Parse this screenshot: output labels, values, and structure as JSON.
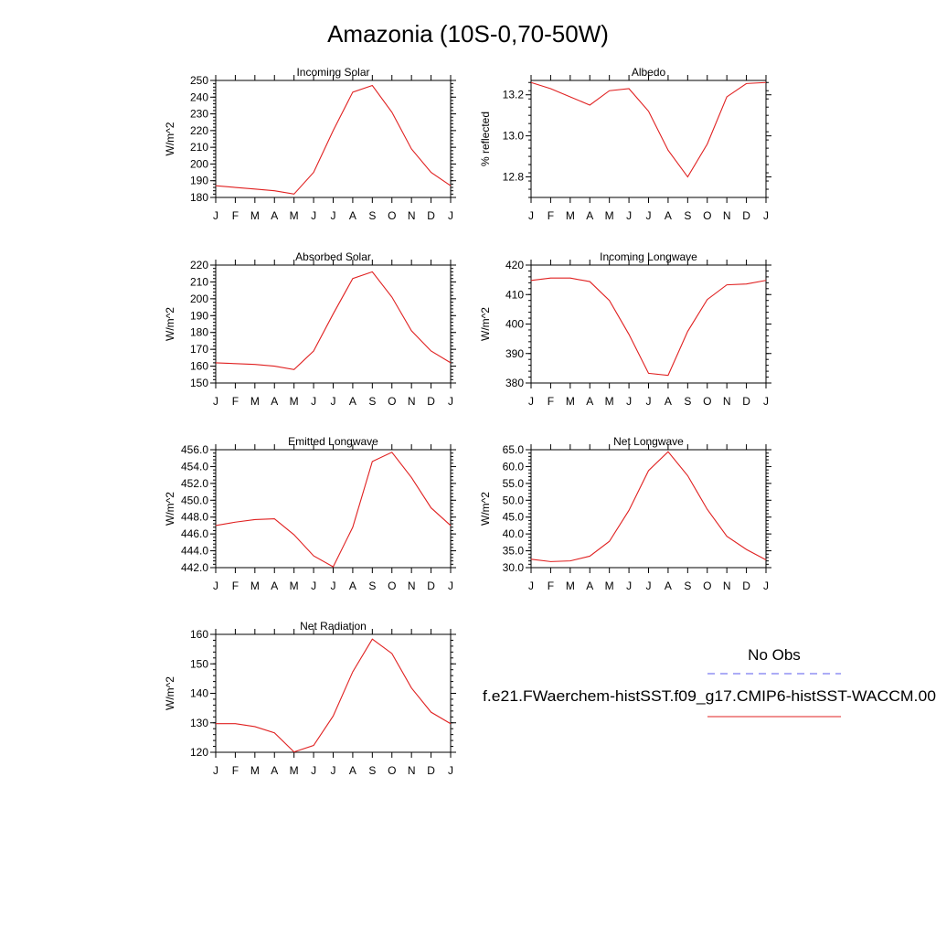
{
  "figure": {
    "title": "Amazonia (10S-0,70-50W)"
  },
  "legend": {
    "entries": [
      {
        "label": "No Obs",
        "color": "#5a5aee",
        "style": "dashed"
      },
      {
        "label": "f.e21.FWaerchem-histSST.f09_g17.CMIP6-histSST-WACCM.00",
        "color": "#e02020",
        "style": "solid"
      }
    ]
  },
  "chart_data": [
    {
      "type": "line",
      "title": "Incoming Solar",
      "ylabel": "W/m^2",
      "x": [
        "J",
        "F",
        "M",
        "A",
        "M",
        "J",
        "J",
        "A",
        "S",
        "O",
        "N",
        "D",
        "J"
      ],
      "ylim": [
        180,
        250
      ],
      "yticks": [
        180,
        190,
        200,
        210,
        220,
        230,
        240,
        250
      ],
      "ytick_labels": [
        "180",
        "190",
        "200",
        "210",
        "220",
        "230",
        "240",
        "250"
      ],
      "series": [
        {
          "color": "#e02020",
          "values": [
            187,
            186,
            185,
            184,
            182,
            195,
            220,
            243,
            247,
            231,
            209,
            195,
            187
          ]
        }
      ]
    },
    {
      "type": "line",
      "title": "Albedo",
      "ylabel": "% reflected",
      "x": [
        "J",
        "F",
        "M",
        "A",
        "M",
        "J",
        "J",
        "A",
        "S",
        "O",
        "N",
        "D",
        "J"
      ],
      "ylim": [
        12.7,
        13.27
      ],
      "yticks": [
        12.8,
        13.0,
        13.2
      ],
      "ytick_labels": [
        "12.8",
        "13.0",
        "13.2"
      ],
      "series": [
        {
          "color": "#e02020",
          "values": [
            13.26,
            13.23,
            13.19,
            13.15,
            13.22,
            13.23,
            13.12,
            12.93,
            12.8,
            12.96,
            13.19,
            13.255,
            13.26
          ]
        }
      ]
    },
    {
      "type": "line",
      "title": "Absorbed Solar",
      "ylabel": "W/m^2",
      "x": [
        "J",
        "F",
        "M",
        "A",
        "M",
        "J",
        "J",
        "A",
        "S",
        "O",
        "N",
        "D",
        "J"
      ],
      "ylim": [
        150,
        220
      ],
      "yticks": [
        150,
        160,
        170,
        180,
        190,
        200,
        210,
        220
      ],
      "ytick_labels": [
        "150",
        "160",
        "170",
        "180",
        "190",
        "200",
        "210",
        "220"
      ],
      "series": [
        {
          "color": "#e02020",
          "values": [
            162,
            161.5,
            161,
            160,
            158,
            169,
            191,
            212,
            216,
            201,
            181,
            169,
            162
          ]
        }
      ]
    },
    {
      "type": "line",
      "title": "Incoming Longwave",
      "ylabel": "W/m^2",
      "x": [
        "J",
        "F",
        "M",
        "A",
        "M",
        "J",
        "J",
        "A",
        "S",
        "O",
        "N",
        "D",
        "J"
      ],
      "ylim": [
        380,
        420
      ],
      "yticks": [
        380,
        390,
        400,
        410,
        420
      ],
      "ytick_labels": [
        "380",
        "390",
        "400",
        "410",
        "420"
      ],
      "series": [
        {
          "color": "#e02020",
          "values": [
            414.8,
            415.6,
            415.6,
            414.4,
            408,
            396.5,
            383.3,
            382.6,
            397.5,
            408.3,
            413.3,
            413.6,
            414.8
          ]
        }
      ]
    },
    {
      "type": "line",
      "title": "Emitted Longwave",
      "ylabel": "W/m^2",
      "x": [
        "J",
        "F",
        "M",
        "A",
        "M",
        "J",
        "J",
        "A",
        "S",
        "O",
        "N",
        "D",
        "J"
      ],
      "ylim": [
        442,
        456
      ],
      "yticks": [
        442,
        444,
        446,
        448,
        450,
        452,
        454,
        456
      ],
      "ytick_labels": [
        "442.0",
        "444.0",
        "446.0",
        "448.0",
        "450.0",
        "452.0",
        "454.0",
        "456.0"
      ],
      "series": [
        {
          "color": "#e02020",
          "values": [
            447.0,
            447.4,
            447.7,
            447.8,
            445.9,
            443.4,
            442.1,
            446.8,
            454.6,
            455.7,
            452.7,
            449.1,
            447.0
          ]
        }
      ]
    },
    {
      "type": "line",
      "title": "Net Longwave",
      "ylabel": "W/m^2",
      "x": [
        "J",
        "F",
        "M",
        "A",
        "M",
        "J",
        "J",
        "A",
        "S",
        "O",
        "N",
        "D",
        "J"
      ],
      "ylim": [
        30,
        65
      ],
      "yticks": [
        30,
        35,
        40,
        45,
        50,
        55,
        60,
        65
      ],
      "ytick_labels": [
        "30.0",
        "35.0",
        "40.0",
        "45.0",
        "50.0",
        "55.0",
        "60.0",
        "65.0"
      ],
      "series": [
        {
          "color": "#e02020",
          "values": [
            32.5,
            31.8,
            32.0,
            33.4,
            37.8,
            47.0,
            58.8,
            64.4,
            57.3,
            47.3,
            39.3,
            35.4,
            32.3
          ]
        }
      ]
    },
    {
      "type": "line",
      "title": "Net Radiation",
      "ylabel": "W/m^2",
      "x": [
        "J",
        "F",
        "M",
        "A",
        "M",
        "J",
        "J",
        "A",
        "S",
        "O",
        "N",
        "D",
        "J"
      ],
      "ylim": [
        120,
        160
      ],
      "yticks": [
        120,
        130,
        140,
        150,
        160
      ],
      "ytick_labels": [
        "120",
        "130",
        "140",
        "150",
        "160"
      ],
      "series": [
        {
          "color": "#e02020",
          "values": [
            129.7,
            129.7,
            128.7,
            126.6,
            120.1,
            122.3,
            132.3,
            147.3,
            158.4,
            153.5,
            141.8,
            133.6,
            129.7
          ]
        }
      ]
    }
  ]
}
